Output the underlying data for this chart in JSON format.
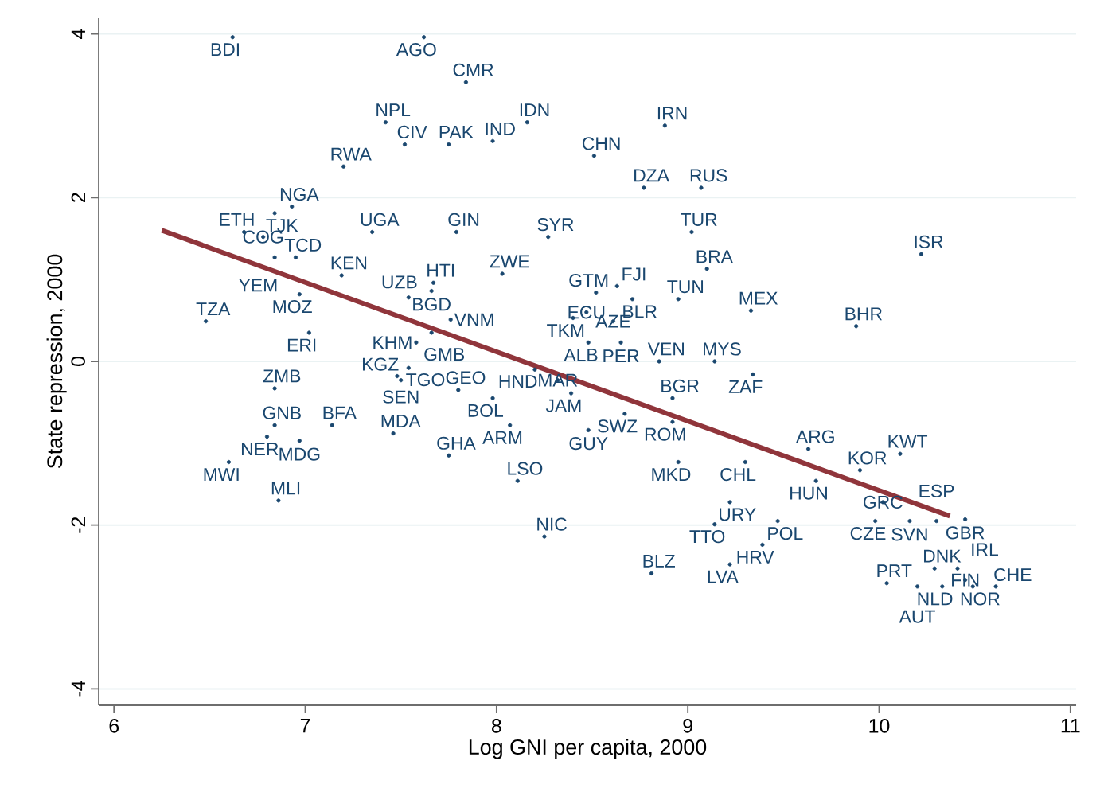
{
  "chart_data": {
    "type": "scatter",
    "xlabel": "Log GNI per capita, 2000",
    "ylabel": "State repression, 2000",
    "xlim": [
      5.92,
      11.03
    ],
    "ylim": [
      -4.2,
      4.2
    ],
    "xticks": [
      6,
      7,
      8,
      9,
      10,
      11
    ],
    "yticks": [
      -4,
      -2,
      0,
      2,
      4
    ],
    "grid": "y",
    "series": [
      {
        "type": "scatter",
        "color": "#1a476f",
        "marker": "circle",
        "x": [
          6.62,
          7.62,
          7.84,
          7.42,
          7.52,
          7.75,
          7.98,
          8.16,
          8.88,
          8.51,
          7.2,
          8.77,
          9.07,
          6.93,
          6.84,
          6.68,
          6.78,
          7.35,
          7.79,
          8.27,
          9.02,
          6.84,
          6.95,
          7.19,
          10.22,
          9.1,
          8.03,
          7.67,
          6.97,
          7.54,
          7.66,
          6.48,
          7.02,
          9.33,
          9.88,
          8.52,
          8.63,
          8.71,
          8.95,
          7.76,
          7.66,
          7.58,
          8.4,
          8.47,
          8.61,
          8.48,
          8.65,
          8.85,
          9.14,
          9.34,
          7.54,
          7.48,
          7.5,
          8.2,
          7.8,
          7.98,
          8.07,
          8.39,
          8.32,
          8.67,
          8.92,
          8.92,
          8.48,
          8.95,
          9.3,
          9.63,
          10.11,
          9.9,
          9.67,
          10.02,
          9.22,
          9.47,
          9.98,
          9.14,
          9.39,
          9.22,
          8.81,
          8.25,
          8.11,
          7.75,
          7.46,
          7.14,
          6.84,
          6.8,
          6.97,
          6.84,
          6.6,
          6.86,
          10.04,
          10.16,
          10.3,
          10.45,
          10.29,
          10.41,
          10.45,
          10.33,
          10.2,
          10.49,
          10.61
        ],
        "values": [
          3.96,
          3.96,
          3.41,
          2.92,
          2.65,
          2.65,
          2.69,
          2.92,
          2.88,
          2.51,
          2.38,
          2.12,
          2.12,
          1.89,
          1.81,
          1.58,
          1.52,
          1.58,
          1.58,
          1.52,
          1.58,
          1.27,
          1.27,
          1.05,
          1.31,
          1.13,
          1.07,
          0.96,
          0.82,
          0.78,
          0.86,
          0.49,
          0.35,
          0.62,
          0.43,
          0.84,
          0.92,
          0.76,
          0.76,
          0.51,
          0.35,
          0.23,
          0.53,
          0.6,
          0.49,
          0.23,
          0.23,
          0.0,
          0.0,
          -0.16,
          -0.08,
          -0.18,
          -0.23,
          -0.1,
          -0.35,
          -0.45,
          -0.78,
          -0.39,
          -0.23,
          -0.64,
          -0.45,
          -0.74,
          -0.84,
          -1.23,
          -1.23,
          -1.07,
          -1.13,
          -1.33,
          -1.46,
          -1.72,
          -1.72,
          -1.95,
          -1.95,
          -1.99,
          -2.24,
          -2.48,
          -2.59,
          -2.14,
          -1.46,
          -1.15,
          -0.88,
          -0.78,
          -0.78,
          -0.92,
          -0.97,
          -0.33,
          -1.23,
          -1.7,
          -2.71,
          -1.95,
          -1.95,
          -1.93,
          -2.53,
          -2.53,
          -2.67,
          -2.75,
          -2.75,
          -2.75,
          -2.75
        ],
        "value_labels": [
          "BDI",
          "AGO",
          "CMR",
          "NPL",
          "CIV",
          "PAK",
          "IND",
          "IDN",
          "IRN",
          "CHN",
          "RWA",
          "DZA",
          "RUS",
          "NGA",
          "TJK",
          "ETH",
          "COG",
          "UGA",
          "GIN",
          "SYR",
          "TUR",
          "YEM",
          "TCD",
          "KEN",
          "ISR",
          "BRA",
          "ZWE",
          "HTI",
          "MOZ",
          "UZB",
          "BGD",
          "TZA",
          "ERI",
          "MEX",
          "BHR",
          "GTM",
          "FJI",
          "BLR",
          "TUN",
          "VNM",
          "GMB",
          "KHM",
          "TKM",
          "ECU",
          "AZE",
          "ALB",
          "PER",
          "VEN",
          "MYS",
          "ZAF",
          "TGO",
          "KGZ",
          "SEN",
          "HND",
          "GEO",
          "BOL",
          "ARM",
          "JAM",
          "MAR",
          "SWZ",
          "BGR",
          "ROM",
          "GUY",
          "MKD",
          "CHL",
          "ARG",
          "KWT",
          "KOR",
          "HUN",
          "GRC",
          "URY",
          "POL",
          "CZE",
          "TTO",
          "HRV",
          "LVA",
          "BLZ",
          "NIC",
          "LSO",
          "GHA",
          "MDA",
          "BFA",
          "GNB",
          "NER",
          "MDG",
          "ZMB",
          "MWI",
          "MLI",
          "PRT",
          "SVN",
          "ESP",
          "GBR",
          "DNK",
          "IRL",
          "FIN",
          "NLD",
          "AUT",
          "NOR",
          "CHE"
        ]
      },
      {
        "type": "line",
        "color": "#90353b",
        "x": [
          6.25,
          10.37
        ],
        "values": [
          1.6,
          -1.89
        ]
      }
    ]
  }
}
